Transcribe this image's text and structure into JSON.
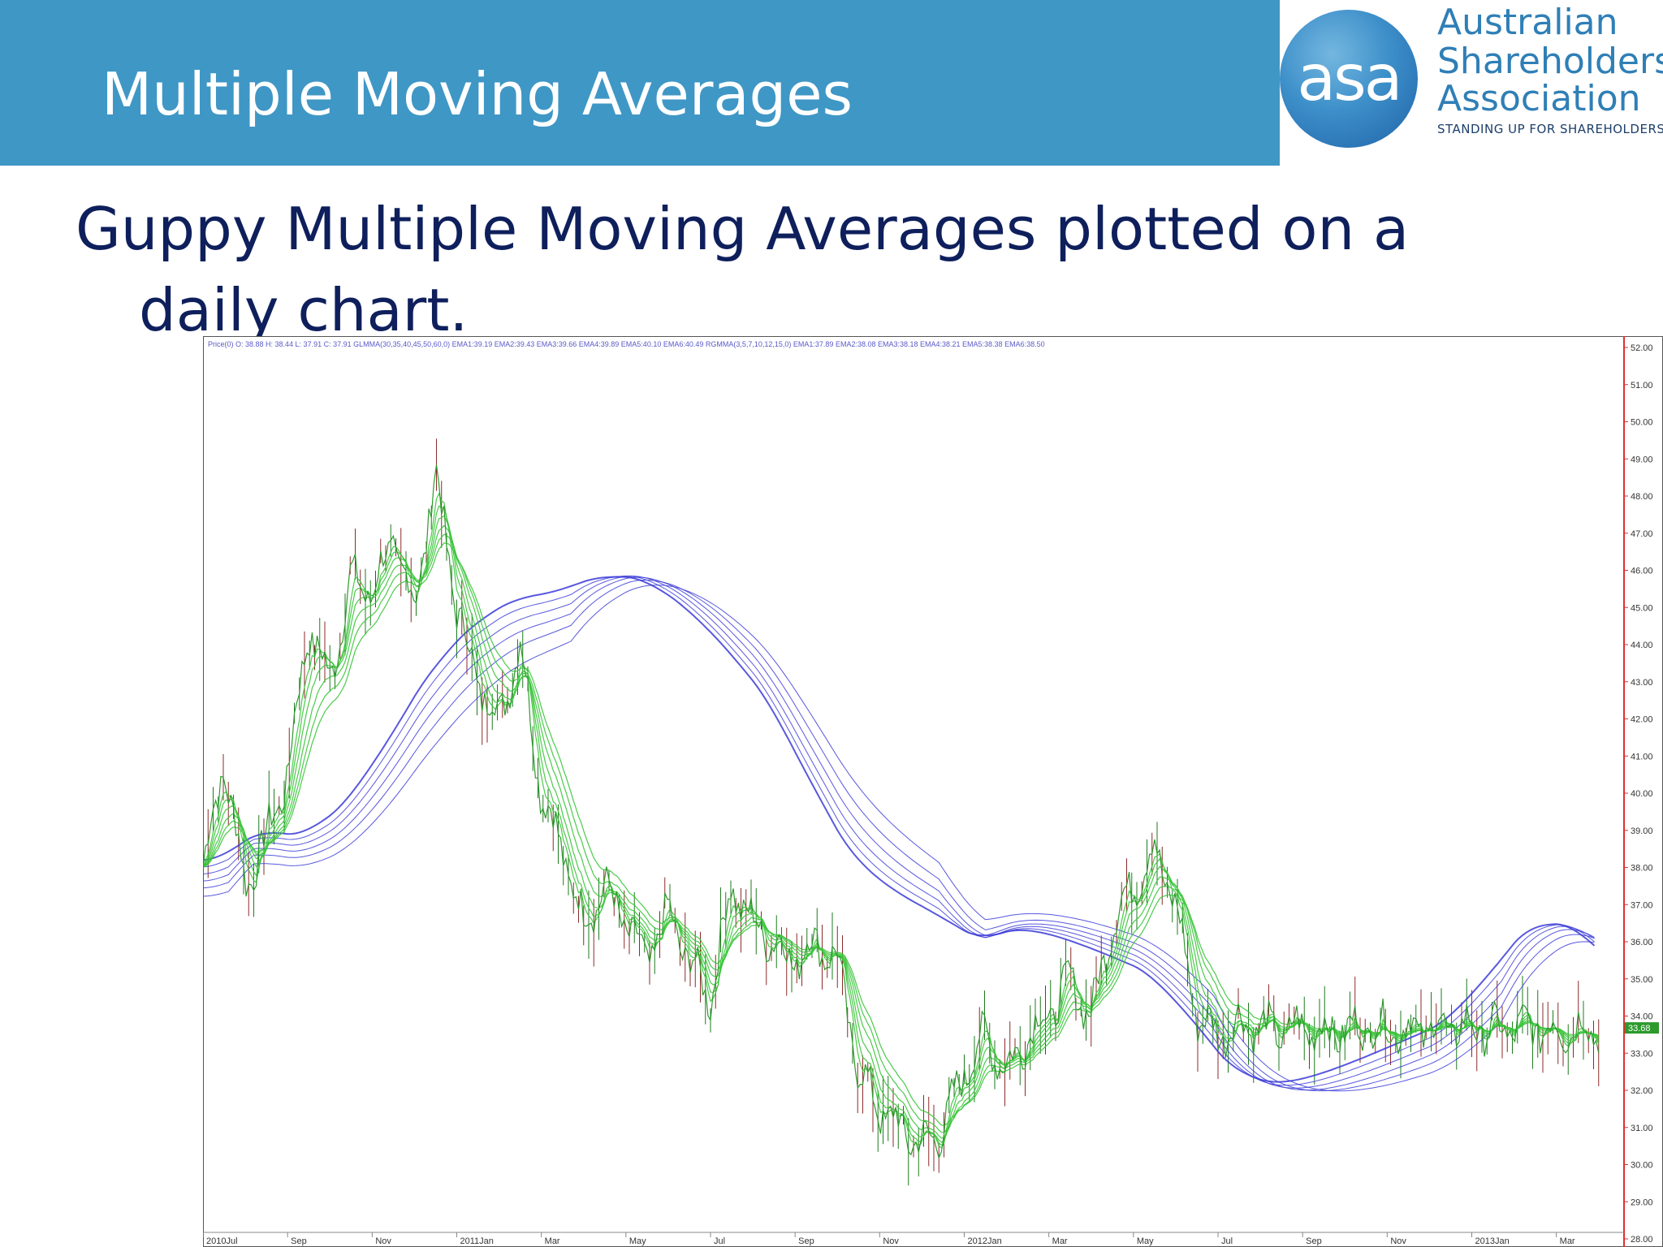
{
  "slide": {
    "title": "Multiple Moving Averages",
    "subtitle_line1": "Guppy Multiple Moving Averages plotted on a",
    "subtitle_line2": "daily chart."
  },
  "logo": {
    "mark": "asa",
    "line1": "Australian",
    "line2": "Shareholders'",
    "line3": "Association",
    "tagline": "STANDING UP FOR SHAREHOLDERS"
  },
  "chart_data": {
    "type": "line",
    "legend_text": "Price(0) O: 38.88 H: 38.44 L: 37.91 C: 37.91 GLMMA(30,35,40,45,50,60,0) EMA1:39.19 EMA2:39.43 EMA3:39.66 EMA4:39.89 EMA5:40.10 EMA6:40.49 RGMMA(3,5,7,10,12,15,0) EMA1:37.89 EMA2:38.08 EMA3:38.18 EMA4:38.21 EMA5:38.38 EMA6:38.50",
    "x_tick_labels": [
      "2010Jul",
      "Sep",
      "Nov",
      "2011Jan",
      "Mar",
      "May",
      "Jul",
      "Sep",
      "Nov",
      "2012Jan",
      "Mar",
      "May",
      "Jul",
      "Sep",
      "Nov",
      "2013Jan",
      "Mar"
    ],
    "x_tick_index": [
      0,
      2,
      4,
      6,
      8,
      10,
      12,
      14,
      16,
      18,
      20,
      22,
      24,
      26,
      28,
      30,
      32
    ],
    "y_tick_labels": [
      "52.00",
      "51.00",
      "50.00",
      "49.00",
      "48.00",
      "47.00",
      "46.00",
      "45.00",
      "44.00",
      "43.00",
      "42.00",
      "41.00",
      "40.00",
      "39.00",
      "38.00",
      "37.00",
      "36.00",
      "35.00",
      "34.00",
      "33.00",
      "32.00",
      "31.00",
      "30.00",
      "29.00",
      "28.00"
    ],
    "ylim": [
      28,
      52
    ],
    "last_price_label": "33.68",
    "last_price": 33.68,
    "grid": false,
    "axis_color": "#e03030",
    "colors": {
      "price": "#2c9a2c",
      "short_ema": "#37c437",
      "long_ema": "#3b3bd8",
      "candle_up": "#1f7a1f",
      "candle_down": "#8b2a2a"
    },
    "series": [
      {
        "role": "price",
        "x": [
          0,
          0.5,
          1,
          1.5,
          2,
          2.5,
          3,
          3.5,
          4,
          4.5,
          5,
          5.5,
          6,
          6.5,
          7,
          7.5,
          8,
          8.5,
          9,
          9.5,
          10,
          10.5,
          11,
          11.5,
          12,
          12.5,
          13,
          13.5,
          14,
          14.5,
          15,
          15.5,
          16,
          16.5,
          17,
          17.5,
          18,
          18.5,
          19,
          19.5,
          20,
          20.5,
          21,
          21.5,
          22,
          22.5,
          23,
          23.5,
          24,
          24.5,
          25,
          25.5,
          26,
          26.5,
          27,
          27.5,
          28,
          28.5,
          29,
          29.5,
          30,
          30.5,
          31,
          31.5,
          32,
          32.5,
          33
        ],
        "values": [
          38.0,
          40.8,
          37.5,
          38.8,
          40.5,
          44.5,
          43.0,
          45.8,
          45.4,
          46.8,
          45.0,
          48.6,
          45.0,
          43.0,
          42.0,
          44.0,
          40.0,
          38.5,
          36.5,
          37.5,
          36.5,
          35.5,
          36.8,
          35.5,
          34.5,
          37.5,
          36.5,
          36.0,
          35.5,
          36.0,
          35.5,
          32.5,
          31.5,
          31.0,
          30.5,
          31.0,
          32.5,
          33.5,
          32.5,
          33.5,
          34.0,
          35.0,
          34.0,
          36.5,
          37.5,
          38.5,
          37.0,
          34.0,
          33.5,
          33.8,
          33.7,
          33.6,
          33.7,
          33.6,
          33.6,
          33.7,
          33.68,
          33.6,
          33.7,
          33.68,
          33.7,
          33.6,
          33.68,
          33.7,
          33.6,
          33.68,
          33.68
        ]
      },
      {
        "role": "long_ema",
        "x": [
          0,
          1,
          2,
          3,
          4,
          5,
          6,
          7,
          8,
          9,
          10,
          11,
          12,
          13,
          14,
          15,
          16,
          17,
          18,
          19,
          20,
          21,
          22,
          23,
          24,
          25,
          26,
          27,
          28,
          29,
          30,
          31,
          32,
          33
        ],
        "values": [
          38.2,
          39.3,
          38.8,
          40.0,
          42.0,
          44.0,
          45.0,
          45.5,
          45.5,
          46.0,
          45.8,
          44.8,
          43.5,
          42.0,
          39.5,
          37.5,
          37.0,
          36.5,
          35.8,
          36.5,
          36.0,
          35.5,
          35.0,
          33.5,
          32.0,
          32.0,
          32.5,
          33.0,
          33.5,
          34.0,
          35.5,
          37.0,
          36.5,
          35.0
        ]
      }
    ]
  }
}
